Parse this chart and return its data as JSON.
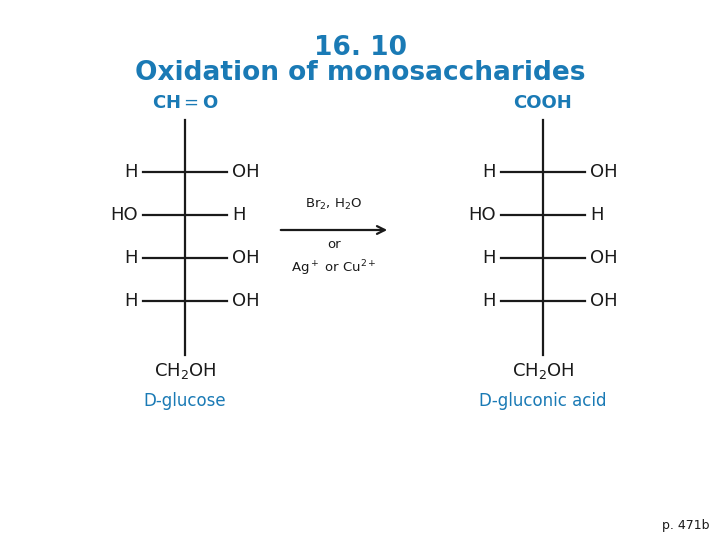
{
  "title_line1": "16. 10",
  "title_line2": "Oxidation of monosaccharides",
  "title_color": "#1a7ab5",
  "bg_color": "#ffffff",
  "black": "#1a1a1a",
  "blue": "#1a7ab5",
  "label_left": "D-glucose",
  "label_right": "D-gluconic acid",
  "page_ref": "p. 471b"
}
